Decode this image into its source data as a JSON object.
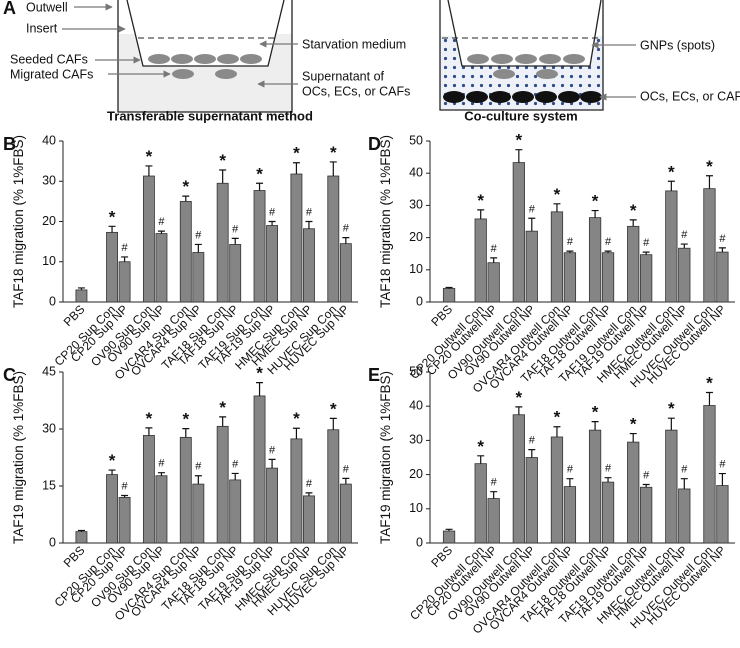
{
  "diagram": {
    "panel": "A",
    "left": {
      "outwell": "Outwell",
      "insert": "Insert",
      "seeded": "Seeded CAFs",
      "migrated": "Migrated CAFs",
      "medium": "Starvation medium",
      "supernatant": [
        "Supernatant of",
        "OCs, ECs, or CAFs"
      ],
      "caption": "Transferable supernatant method"
    },
    "right": {
      "gnps": "GNPs (spots)",
      "cells": "OCs, ECs, or CAFs",
      "caption": "Co-culture system"
    }
  },
  "chart_data": [
    {
      "type": "bar",
      "panel": "B",
      "y_label": "TAF18 migration (% 1%FBS)",
      "color": "#858585",
      "categories": [
        "PBS",
        "CP20 Sup Con",
        "CP20 Sup NP",
        "OV90 Sup Con",
        "OV90 Sup NP",
        "OVCAR4 Sup Con",
        "OVCAR4 Sup NP",
        "TAF18 Sup Con",
        "TAF18 Sup NP",
        "TAF19 Sup Con",
        "TAF19 Sup NP",
        "HMEC Sup Con",
        "HMEC Sup NP",
        "HUVEC Sup Con",
        "HUVEC Sup NP"
      ],
      "values": [
        3,
        17.3,
        10,
        31.3,
        17,
        25,
        12.3,
        29.5,
        14.3,
        27.7,
        19,
        31.8,
        18.2,
        31.3,
        14.5
      ],
      "errors": [
        0.5,
        1.5,
        1.2,
        2.5,
        0.6,
        1.3,
        2,
        3.3,
        1.5,
        1.8,
        1,
        2.8,
        1.8,
        3.5,
        1.5
      ],
      "markers": [
        null,
        "*",
        "#",
        "*",
        "#",
        "*",
        "#",
        "*",
        "#",
        "*",
        "#",
        "*",
        "#",
        "*",
        "#"
      ],
      "ylim": [
        0,
        40
      ],
      "yticks": [
        0,
        10,
        20,
        30,
        40
      ]
    },
    {
      "type": "bar",
      "panel": "C",
      "y_label": "TAF19 migration (% 1%FBS)",
      "color": "#858585",
      "categories": [
        "PBS",
        "CP20 Sup Con",
        "CP20 Sup NP",
        "OV90 Sup Con",
        "OV90 Sup NP",
        "OVCAR4 Sup Con",
        "OVCAR4 Sup NP",
        "TAF18 Sup Con",
        "TAF18 Sup NP",
        "TAF19 Sup Con",
        "TAF19 Sup NP",
        "HMEC Sup Con",
        "HMEC Sup NP",
        "HUVEC Sup Con",
        "HUVEC Sup NP"
      ],
      "values": [
        3,
        18,
        12,
        28.3,
        17.7,
        27.8,
        15.5,
        30.7,
        16.6,
        38.7,
        19.7,
        27.4,
        12.4,
        29.8,
        15.5
      ],
      "errors": [
        0.3,
        1.2,
        0.5,
        2,
        0.8,
        2.3,
        2.2,
        2.5,
        1.7,
        3.5,
        2.3,
        2.8,
        0.8,
        3,
        1.5
      ],
      "markers": [
        null,
        "*",
        "#",
        "*",
        "#",
        "*",
        "#",
        "*",
        "#",
        "*",
        "#",
        "*",
        "#",
        "*",
        "#"
      ],
      "ylim": [
        0,
        45
      ],
      "yticks": [
        0,
        15,
        30,
        45
      ]
    },
    {
      "type": "bar",
      "panel": "D",
      "y_label": "TAF18 migration (% 1%FBS)",
      "color": "#858585",
      "categories": [
        "PBS",
        "CP20 Outwell Con",
        "CP20 Outwell NP",
        "OV90 Outwell Con",
        "OV90 Outwell NP",
        "OVCAR4 Outwell Con",
        "OVCAR4 Outwell NP",
        "TAF18 Outwell Con",
        "TAF18 Outwell NP",
        "TAF19 Outwell Con",
        "TAF19 Outwell NP",
        "HMEC Outwell Con",
        "HMEC Outwell NP",
        "HUVEC Outwell Con",
        "HUVEC Outwell NP"
      ],
      "values": [
        4.2,
        25.8,
        12.2,
        43.3,
        22,
        28,
        15.3,
        26.2,
        15.3,
        23.5,
        14.7,
        34.5,
        16.7,
        35.2,
        15.5
      ],
      "errors": [
        0.3,
        2.8,
        1.5,
        4,
        4,
        2.5,
        0.5,
        2.2,
        0.5,
        2,
        0.8,
        3,
        1.3,
        4,
        1.3
      ],
      "markers": [
        null,
        "*",
        "#",
        "*",
        "#",
        "*",
        "#",
        "*",
        "#",
        "*",
        "#",
        "*",
        "#",
        "*",
        "#"
      ],
      "ylim": [
        0,
        50
      ],
      "yticks": [
        0,
        10,
        20,
        30,
        40,
        50
      ]
    },
    {
      "type": "bar",
      "panel": "E",
      "y_label": "TAF19 migration (% 1%FBS)",
      "color": "#858585",
      "categories": [
        "PBS",
        "CP20 Outwell Con",
        "CP20 Outwell NP",
        "OV90 Outwell Con",
        "OV90 Outwell NP",
        "OVCAR4 Outwell Con",
        "OVCAR4 Outwell NP",
        "TAF18 Outwell Con",
        "TAF18 Outwell NP",
        "TAF19 Outwell Con",
        "TAF19 Outwell NP",
        "HMEC Outwell Con",
        "HMEC Outwell NP",
        "HUVEC Outwell Con",
        "HUVEC Outwell NP"
      ],
      "values": [
        3.5,
        23.2,
        13,
        37.5,
        25,
        31,
        16.5,
        33,
        17.8,
        29.5,
        16.3,
        33,
        15.8,
        40.2,
        16.8
      ],
      "errors": [
        0.5,
        2.3,
        2,
        2.3,
        2.3,
        3,
        2.3,
        2.5,
        1.3,
        2.5,
        0.8,
        3.5,
        3,
        3.8,
        3.5
      ],
      "markers": [
        null,
        "*",
        "#",
        "*",
        "#",
        "*",
        "#",
        "*",
        "#",
        "*",
        "#",
        "*",
        "#",
        "*",
        "#"
      ],
      "ylim": [
        0,
        50
      ],
      "yticks": [
        0,
        10,
        20,
        30,
        40,
        50
      ]
    }
  ]
}
